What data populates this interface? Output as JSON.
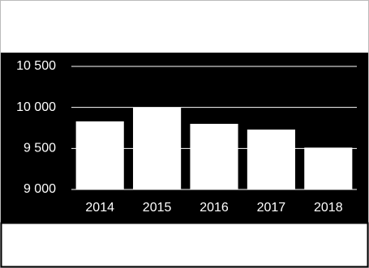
{
  "chart_data": {
    "type": "bar",
    "categories": [
      "2014",
      "2015",
      "2016",
      "2017",
      "2018"
    ],
    "values": [
      9830,
      10000,
      9800,
      9730,
      9510
    ],
    "color": "#ffffff",
    "ylim": [
      9000,
      10500
    ],
    "yticks": [
      {
        "value": 9000,
        "label": "9 000"
      },
      {
        "value": 9500,
        "label": "9 500"
      },
      {
        "value": 10000,
        "label": "10 000"
      },
      {
        "value": 10500,
        "label": "10 500"
      }
    ],
    "grid": true
  }
}
